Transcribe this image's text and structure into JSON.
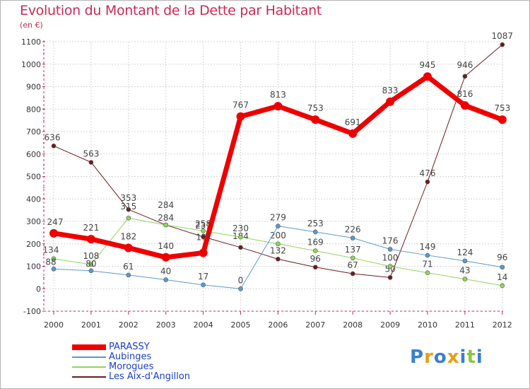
{
  "title": "Evolution du Montant de la Dette par Habitant",
  "subtitle": "(en €)",
  "logo": {
    "text": "Proxiti",
    "letters": [
      "P",
      "r",
      "o",
      "x",
      "i",
      "t",
      "i"
    ],
    "colors": [
      "#3a7fd0",
      "#e8a013",
      "#3a7fd0",
      "#e8a013",
      "#3a7fd0",
      "#8ec63f",
      "#3a7fd0"
    ]
  },
  "chart_data": {
    "type": "line",
    "x": [
      "2000",
      "2001",
      "2002",
      "2003",
      "2004",
      "2005",
      "2006",
      "2007",
      "2008",
      "2009",
      "2010",
      "2011",
      "2012"
    ],
    "ylim": [
      -100,
      1100
    ],
    "yticks": [
      "-100",
      "0",
      "100",
      "200",
      "300",
      "400",
      "500",
      "600",
      "700",
      "800",
      "900",
      "1000",
      "1100"
    ],
    "grid": true,
    "legend_position": "bottom-left",
    "series": [
      {
        "name": "Les Aix-d'Angillon",
        "color": "#6b1c1c",
        "width": 1,
        "values": [
          636,
          563,
          353,
          284,
          231,
          184,
          132,
          96,
          67,
          50,
          476,
          946,
          1087
        ],
        "labels": [
          "636",
          "563",
          "353",
          "284",
          "231",
          "184",
          "132",
          "96",
          "67",
          "50",
          "476",
          "946",
          "1087"
        ]
      },
      {
        "name": "Morogues",
        "color": "#8fd65b",
        "width": 1,
        "values": [
          134,
          108,
          315,
          284,
          258,
          230,
          200,
          169,
          137,
          100,
          71,
          43,
          14
        ],
        "labels": [
          "134",
          "108",
          "315",
          "284",
          "258",
          "230",
          "200",
          "169",
          "137",
          "100",
          "71",
          "43",
          "14"
        ]
      },
      {
        "name": "Aubinges",
        "color": "#5a9ad0",
        "width": 1,
        "values": [
          88,
          80,
          61,
          40,
          17,
          0,
          279,
          253,
          226,
          176,
          149,
          124,
          96
        ],
        "labels": [
          "88",
          "80",
          "61",
          "40",
          "17",
          "0",
          "279",
          "253",
          "226",
          "176",
          "149",
          "124",
          "96"
        ]
      },
      {
        "name": "PARASSY",
        "color": "#ee0000",
        "width": 7,
        "values": [
          247,
          221,
          182,
          140,
          160,
          767,
          813,
          753,
          691,
          833,
          945,
          816,
          753
        ],
        "labels": [
          "247",
          "221",
          "182",
          "140",
          "1??",
          "767",
          "813",
          "753",
          "691",
          "833",
          "945",
          "816",
          "753"
        ]
      }
    ],
    "legend_order": [
      "PARASSY",
      "Aubinges",
      "Morogues",
      "Les Aix-d'Angillon"
    ]
  }
}
